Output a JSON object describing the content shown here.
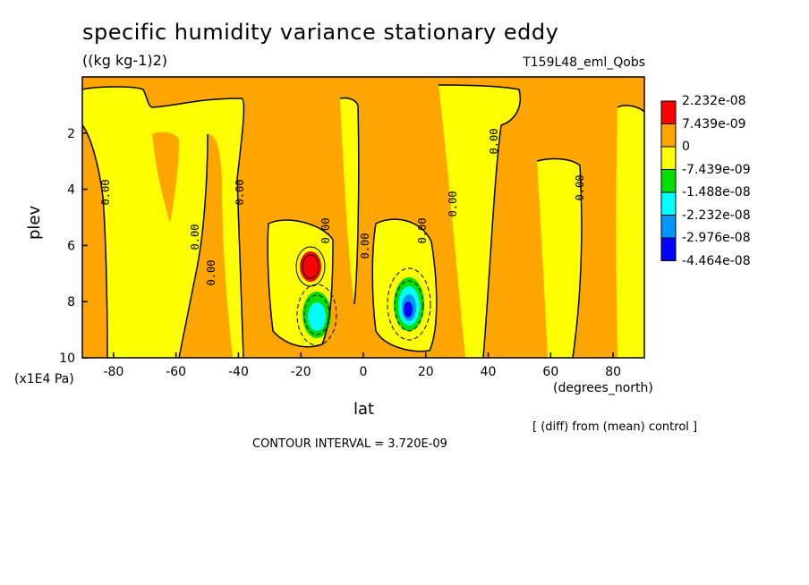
{
  "chart_data": {
    "type": "heatmap",
    "title": "specific humidity variance stationary eddy",
    "units": "((kg kg-1)2)",
    "run_id": "T159L48_eml_Qobs",
    "xlabel": "lat",
    "x_unit": "(degrees_north)",
    "ylabel": "plev",
    "y_unit": "(x1E4 Pa)",
    "xlim": [
      -90,
      90
    ],
    "ylim": [
      10,
      0
    ],
    "x_ticks": [
      "-80",
      "-60",
      "-40",
      "-20",
      "0",
      "20",
      "40",
      "60",
      "80"
    ],
    "x_tick_values": [
      -80,
      -60,
      -40,
      -20,
      0,
      20,
      40,
      60,
      80
    ],
    "y_ticks": [
      "2",
      "4",
      "6",
      "8",
      "10"
    ],
    "y_tick_values": [
      2,
      4,
      6,
      8,
      10
    ],
    "legend": [
      {
        "label": "2.232e-08",
        "color": "#ff0000"
      },
      {
        "label": "7.439e-09",
        "color": "#ffa500"
      },
      {
        "label": "0",
        "color": "#ffff00"
      },
      {
        "label": "-7.439e-09",
        "color": "#00e000"
      },
      {
        "label": "-1.488e-08",
        "color": "#00ffff"
      },
      {
        "label": "-2.232e-08",
        "color": "#0096ff"
      },
      {
        "label": "-2.976e-08",
        "color": "#0000ff"
      },
      {
        "label": "-4.464e-08",
        "color": ""
      }
    ],
    "contour_labels": [
      "0.00"
    ],
    "note": "[ (diff) from (mean) control ]",
    "contour_interval": "CONTOUR INTERVAL = 3.720E-09"
  }
}
